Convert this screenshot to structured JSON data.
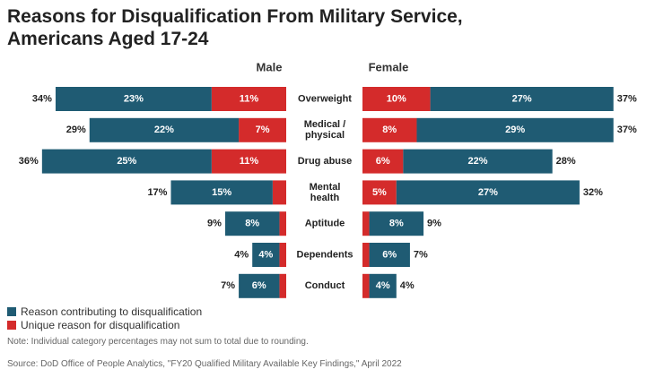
{
  "chart_data": {
    "type": "bar",
    "orientation": "horizontal-diverging-stacked",
    "title": "Reasons for Disqualification From Military Service, Americans Aged 17-24",
    "categories": [
      "Overweight",
      "Medical / physical",
      "Drug abuse",
      "Mental health",
      "Aptitude",
      "Dependents",
      "Conduct"
    ],
    "groups": [
      {
        "name": "Male",
        "contributing": [
          23,
          22,
          25,
          15,
          8,
          4,
          6
        ],
        "unique": [
          11,
          7,
          11,
          2,
          1,
          1,
          1
        ],
        "contributing_labels": [
          "23%",
          "22%",
          "25%",
          "15%",
          "8%",
          "4%",
          "6%"
        ],
        "unique_labels": [
          "11%",
          "7%",
          "11%",
          "",
          "",
          "",
          ""
        ],
        "totals": [
          "34%",
          "29%",
          "36%",
          "17%",
          "9%",
          "4%",
          "7%"
        ]
      },
      {
        "name": "Female",
        "contributing": [
          27,
          29,
          22,
          27,
          8,
          6,
          4
        ],
        "unique": [
          10,
          8,
          6,
          5,
          1,
          1,
          1
        ],
        "contributing_labels": [
          "27%",
          "29%",
          "22%",
          "27%",
          "8%",
          "6%",
          "4%"
        ],
        "unique_labels": [
          "10%",
          "8%",
          "6%",
          "5%",
          "",
          "",
          ""
        ],
        "totals": [
          "37%",
          "37%",
          "28%",
          "32%",
          "9%",
          "7%",
          "4%"
        ]
      }
    ],
    "series": [
      {
        "name": "Reason contributing to disqualification",
        "color": "#1f5b73"
      },
      {
        "name": "Unique reason for disqualification",
        "color": "#d42b2b"
      }
    ],
    "grid": false,
    "legend_placement": "bottom-left"
  },
  "title_line1": "Reasons for Disqualification From Military Service,",
  "title_line2": "Americans Aged 17-24",
  "note": "Note: Individual category percentages may not sum to total due to rounding.",
  "source": "Source: DoD Office of People Analytics, \"FY20 Qualified Military Available Key Findings,\" April 2022"
}
